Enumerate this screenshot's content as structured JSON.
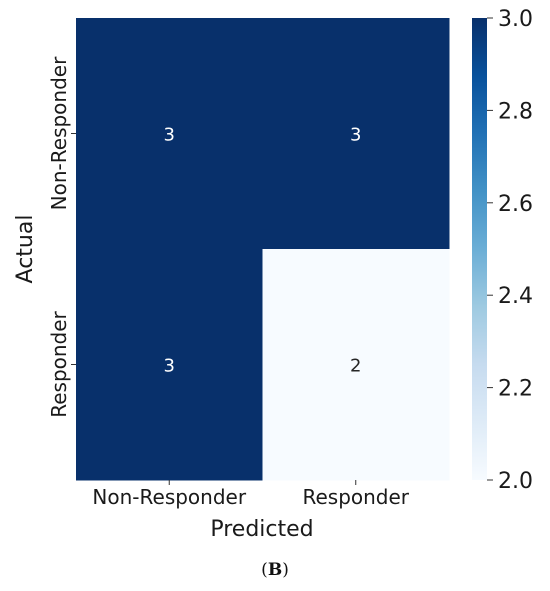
{
  "chart_data": {
    "type": "heatmap",
    "title": "",
    "xlabel": "Predicted",
    "ylabel": "Actual",
    "x_categories": [
      "Non-Responder",
      "Responder"
    ],
    "y_categories": [
      "Non-Responder",
      "Responder"
    ],
    "values": [
      [
        3,
        3
      ],
      [
        3,
        2
      ]
    ],
    "colorbar": {
      "min": 2.0,
      "max": 3.0,
      "ticks": [
        "2.0",
        "2.2",
        "2.4",
        "2.6",
        "2.8",
        "3.0"
      ],
      "colormap": "Blues"
    },
    "colors": {
      "low": "#f7fbff",
      "mid": "#6baed6",
      "high": "#08306b"
    }
  },
  "caption": {
    "open": "(",
    "letter": "B",
    "close": ")"
  }
}
